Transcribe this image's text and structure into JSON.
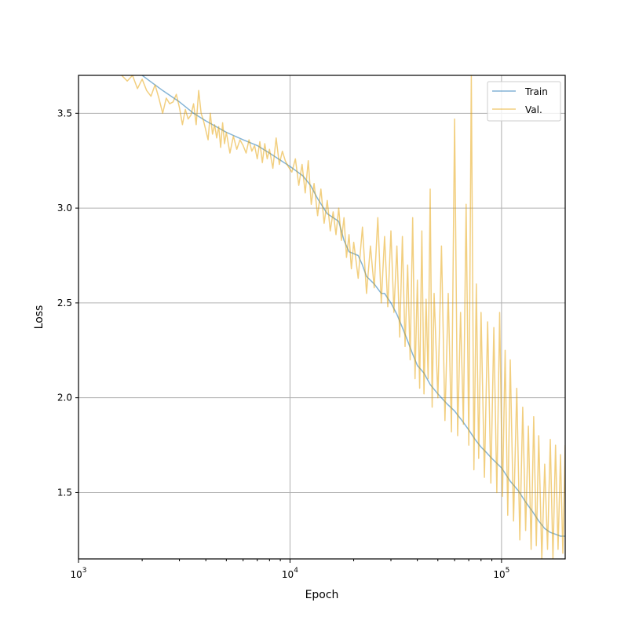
{
  "chart_data": {
    "type": "line",
    "title": "",
    "xlabel": "Epoch",
    "ylabel": "Loss",
    "xscale": "log",
    "xlim": [
      1000,
      200000
    ],
    "ylim": [
      1.15,
      3.7
    ],
    "grid": true,
    "legend_placement": "top-right",
    "x_major_ticks": [
      {
        "value": 1000,
        "base": "10",
        "exp": "3"
      },
      {
        "value": 10000,
        "base": "10",
        "exp": "4"
      },
      {
        "value": 100000,
        "base": "10",
        "exp": "5"
      }
    ],
    "y_ticks": [
      {
        "value": 1.5,
        "label": "1.5"
      },
      {
        "value": 2.0,
        "label": "2.0"
      },
      {
        "value": 2.5,
        "label": "2.5"
      },
      {
        "value": 3.0,
        "label": "3.0"
      },
      {
        "value": 3.5,
        "label": "3.5"
      }
    ],
    "series": [
      {
        "name": "Train",
        "color": "#1f77b4",
        "alpha": 0.55,
        "points": [
          [
            2000,
            3.7
          ],
          [
            2500,
            3.62
          ],
          [
            3000,
            3.56
          ],
          [
            3500,
            3.5
          ],
          [
            4000,
            3.46
          ],
          [
            5000,
            3.4
          ],
          [
            6000,
            3.36
          ],
          [
            7000,
            3.33
          ],
          [
            8000,
            3.29
          ],
          [
            10000,
            3.22
          ],
          [
            11500,
            3.17
          ],
          [
            12500,
            3.12
          ],
          [
            13500,
            3.05
          ],
          [
            15000,
            2.97
          ],
          [
            17000,
            2.93
          ],
          [
            18000,
            2.83
          ],
          [
            19000,
            2.77
          ],
          [
            21000,
            2.75
          ],
          [
            22000,
            2.7
          ],
          [
            23000,
            2.64
          ],
          [
            25000,
            2.6
          ],
          [
            27000,
            2.55
          ],
          [
            28000,
            2.55
          ],
          [
            30000,
            2.5
          ],
          [
            32000,
            2.44
          ],
          [
            34000,
            2.37
          ],
          [
            36000,
            2.3
          ],
          [
            38000,
            2.23
          ],
          [
            40000,
            2.17
          ],
          [
            43000,
            2.13
          ],
          [
            46000,
            2.07
          ],
          [
            50000,
            2.02
          ],
          [
            55000,
            1.97
          ],
          [
            60000,
            1.93
          ],
          [
            65000,
            1.88
          ],
          [
            70000,
            1.83
          ],
          [
            75000,
            1.78
          ],
          [
            80000,
            1.74
          ],
          [
            85000,
            1.71
          ],
          [
            90000,
            1.68
          ],
          [
            100000,
            1.63
          ],
          [
            110000,
            1.56
          ],
          [
            120000,
            1.51
          ],
          [
            130000,
            1.45
          ],
          [
            140000,
            1.4
          ],
          [
            150000,
            1.35
          ],
          [
            160000,
            1.31
          ],
          [
            170000,
            1.29
          ],
          [
            180000,
            1.28
          ],
          [
            190000,
            1.27
          ],
          [
            200000,
            1.27
          ]
        ]
      },
      {
        "name": "Val.",
        "color": "#e69f00",
        "alpha": 0.5,
        "points": [
          [
            1600,
            3.7
          ],
          [
            1700,
            3.67
          ],
          [
            1800,
            3.7
          ],
          [
            1900,
            3.63
          ],
          [
            2000,
            3.68
          ],
          [
            2100,
            3.62
          ],
          [
            2200,
            3.59
          ],
          [
            2300,
            3.65
          ],
          [
            2400,
            3.58
          ],
          [
            2500,
            3.5
          ],
          [
            2600,
            3.58
          ],
          [
            2700,
            3.55
          ],
          [
            2800,
            3.56
          ],
          [
            2900,
            3.6
          ],
          [
            3000,
            3.53
          ],
          [
            3100,
            3.44
          ],
          [
            3200,
            3.52
          ],
          [
            3300,
            3.47
          ],
          [
            3400,
            3.49
          ],
          [
            3500,
            3.55
          ],
          [
            3600,
            3.44
          ],
          [
            3700,
            3.62
          ],
          [
            3800,
            3.5
          ],
          [
            3900,
            3.46
          ],
          [
            4000,
            3.41
          ],
          [
            4100,
            3.36
          ],
          [
            4200,
            3.5
          ],
          [
            4300,
            3.39
          ],
          [
            4400,
            3.44
          ],
          [
            4500,
            3.37
          ],
          [
            4600,
            3.43
          ],
          [
            4700,
            3.32
          ],
          [
            4800,
            3.45
          ],
          [
            4900,
            3.34
          ],
          [
            5000,
            3.4
          ],
          [
            5200,
            3.29
          ],
          [
            5400,
            3.38
          ],
          [
            5600,
            3.31
          ],
          [
            5800,
            3.36
          ],
          [
            6000,
            3.33
          ],
          [
            6200,
            3.29
          ],
          [
            6400,
            3.36
          ],
          [
            6600,
            3.3
          ],
          [
            6800,
            3.33
          ],
          [
            7000,
            3.26
          ],
          [
            7200,
            3.35
          ],
          [
            7400,
            3.24
          ],
          [
            7600,
            3.34
          ],
          [
            7800,
            3.26
          ],
          [
            8000,
            3.31
          ],
          [
            8300,
            3.21
          ],
          [
            8600,
            3.37
          ],
          [
            8900,
            3.23
          ],
          [
            9200,
            3.3
          ],
          [
            9500,
            3.25
          ],
          [
            9800,
            3.22
          ],
          [
            10200,
            3.19
          ],
          [
            10600,
            3.26
          ],
          [
            11000,
            3.12
          ],
          [
            11400,
            3.23
          ],
          [
            11800,
            3.08
          ],
          [
            12200,
            3.25
          ],
          [
            12600,
            3.02
          ],
          [
            13000,
            3.13
          ],
          [
            13500,
            2.96
          ],
          [
            14000,
            3.1
          ],
          [
            14500,
            2.92
          ],
          [
            15000,
            3.04
          ],
          [
            15500,
            2.88
          ],
          [
            16000,
            2.98
          ],
          [
            16500,
            2.86
          ],
          [
            17000,
            3.0
          ],
          [
            17500,
            2.83
          ],
          [
            18000,
            2.95
          ],
          [
            18500,
            2.74
          ],
          [
            19000,
            2.86
          ],
          [
            19500,
            2.68
          ],
          [
            20000,
            2.82
          ],
          [
            21000,
            2.63
          ],
          [
            22000,
            2.9
          ],
          [
            23000,
            2.55
          ],
          [
            24000,
            2.8
          ],
          [
            25000,
            2.58
          ],
          [
            26000,
            2.95
          ],
          [
            27000,
            2.5
          ],
          [
            28000,
            2.85
          ],
          [
            29000,
            2.48
          ],
          [
            30000,
            2.88
          ],
          [
            31000,
            2.45
          ],
          [
            32000,
            2.8
          ],
          [
            33000,
            2.32
          ],
          [
            34000,
            2.85
          ],
          [
            35000,
            2.27
          ],
          [
            36000,
            2.7
          ],
          [
            37000,
            2.2
          ],
          [
            38000,
            2.95
          ],
          [
            39000,
            2.1
          ],
          [
            40000,
            2.62
          ],
          [
            41000,
            2.05
          ],
          [
            42000,
            2.88
          ],
          [
            43000,
            2.02
          ],
          [
            44000,
            2.52
          ],
          [
            45000,
            2.1
          ],
          [
            46000,
            3.1
          ],
          [
            47000,
            1.95
          ],
          [
            48000,
            2.55
          ],
          [
            50000,
            2.0
          ],
          [
            52000,
            2.8
          ],
          [
            54000,
            1.88
          ],
          [
            56000,
            2.55
          ],
          [
            58000,
            1.82
          ],
          [
            60000,
            3.47
          ],
          [
            62000,
            1.8
          ],
          [
            64000,
            2.45
          ],
          [
            66000,
            1.86
          ],
          [
            68000,
            3.02
          ],
          [
            70000,
            1.75
          ],
          [
            72000,
            3.7
          ],
          [
            74000,
            1.62
          ],
          [
            76000,
            2.6
          ],
          [
            78000,
            1.68
          ],
          [
            80000,
            2.45
          ],
          [
            83000,
            1.58
          ],
          [
            86000,
            2.4
          ],
          [
            89000,
            1.55
          ],
          [
            92000,
            2.37
          ],
          [
            95000,
            1.5
          ],
          [
            98000,
            2.45
          ],
          [
            101000,
            1.48
          ],
          [
            104000,
            2.25
          ],
          [
            107000,
            1.38
          ],
          [
            110000,
            2.2
          ],
          [
            114000,
            1.35
          ],
          [
            118000,
            2.05
          ],
          [
            122000,
            1.25
          ],
          [
            126000,
            1.95
          ],
          [
            130000,
            1.3
          ],
          [
            134000,
            1.85
          ],
          [
            138000,
            1.2
          ],
          [
            142000,
            1.9
          ],
          [
            146000,
            1.22
          ],
          [
            150000,
            1.8
          ],
          [
            155000,
            1.15
          ],
          [
            160000,
            1.65
          ],
          [
            165000,
            1.2
          ],
          [
            170000,
            1.78
          ],
          [
            175000,
            1.15
          ],
          [
            180000,
            1.75
          ],
          [
            185000,
            1.2
          ],
          [
            190000,
            1.7
          ],
          [
            195000,
            1.18
          ],
          [
            200000,
            1.75
          ]
        ]
      }
    ]
  }
}
